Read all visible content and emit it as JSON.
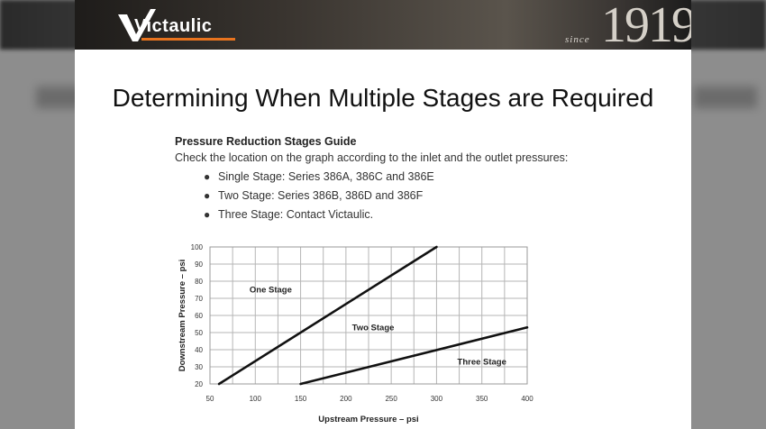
{
  "banner": {
    "logo_text": "Victaulic",
    "since_label": "since",
    "year": "1919"
  },
  "slide": {
    "title": "Determining When Multiple Stages are Required"
  },
  "guide": {
    "heading": "Pressure Reduction Stages Guide",
    "instruction": "Check the location on the graph according to the inlet and the outlet pressures:",
    "items": [
      "Single Stage: Series 386A, 386C and 386E",
      "Two Stage: Series 386B, 386D and 386F",
      "Three Stage: Contact Victaulic."
    ]
  },
  "chart_data": {
    "type": "line",
    "xlabel": "Upstream Pressure – psi",
    "ylabel": "Downstream Pressure – psi",
    "xlim": [
      50,
      400
    ],
    "ylim": [
      20,
      100
    ],
    "x_ticks": [
      50,
      100,
      150,
      200,
      250,
      300,
      350,
      400
    ],
    "y_ticks": [
      20,
      30,
      40,
      50,
      60,
      70,
      80,
      90,
      100
    ],
    "grid": true,
    "series": [
      {
        "x": [
          60,
          300
        ],
        "y": [
          20,
          100
        ]
      },
      {
        "x": [
          150,
          400
        ],
        "y": [
          20,
          53
        ]
      }
    ],
    "annotations": [
      {
        "text": "One Stage",
        "x": 117,
        "y": 75
      },
      {
        "text": "Two Stage",
        "x": 230,
        "y": 53
      },
      {
        "text": "Three Stage",
        "x": 350,
        "y": 33
      }
    ],
    "colors": {
      "line": "#111111",
      "grid": "#b5b5b5"
    }
  }
}
